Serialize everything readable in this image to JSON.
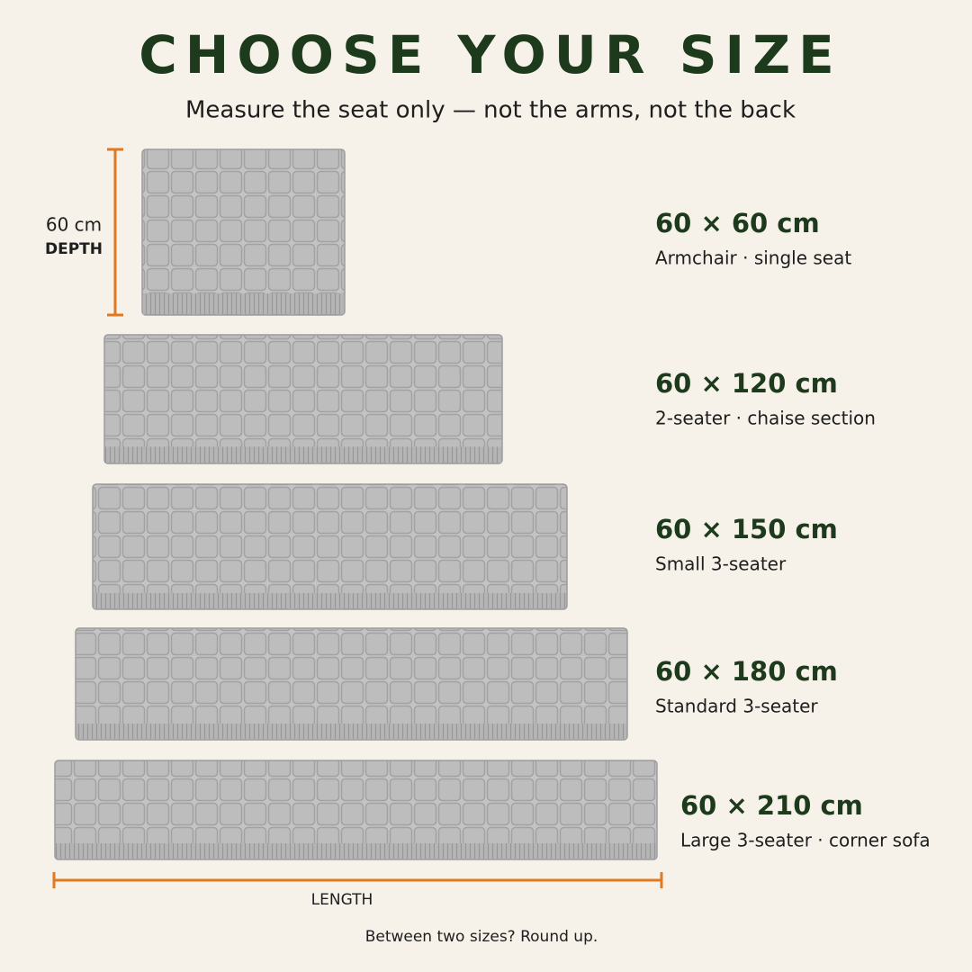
{
  "header": {
    "title": "CHOOSE YOUR SIZE",
    "subtitle": "Measure the seat only — not the arms, not the back"
  },
  "depth_label": {
    "value": "60 cm",
    "label": "DEPTH"
  },
  "sizes": [
    {
      "dimensions": "60 × 60 cm",
      "description": "Armchair · single seat"
    },
    {
      "dimensions": "60 × 120 cm",
      "description": "2-seater · chaise section"
    },
    {
      "dimensions": "60 × 150 cm",
      "description": "Small 3-seater"
    },
    {
      "dimensions": "60 × 180 cm",
      "description": "Standard 3-seater"
    },
    {
      "dimensions": "60 × 210 cm",
      "description": "Large 3-seater · corner sofa"
    }
  ],
  "length_label": "LENGTH",
  "footer": "Between two sizes? Round up."
}
